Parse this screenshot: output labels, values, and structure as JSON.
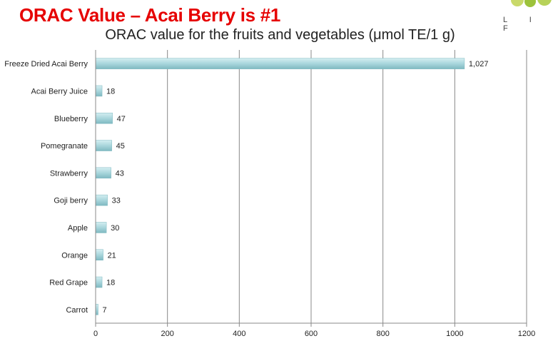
{
  "slide_title": "ORAC Value – Acai Berry is #1",
  "brand": {
    "letters": "L I F"
  },
  "chart_data": {
    "type": "bar",
    "orientation": "horizontal",
    "title": "ORAC value for the fruits and vegetables (μmol TE/1 g)",
    "categories": [
      "Freeze Dried Acai Berry",
      "Acai Berry Juice",
      "Blueberry",
      "Pomegranate",
      "Strawberry",
      "Goji berry",
      "Apple",
      "Orange",
      "Red Grape",
      "Carrot"
    ],
    "values": [
      1027,
      18,
      47,
      45,
      43,
      33,
      30,
      21,
      18,
      7
    ],
    "value_labels": [
      "1,027",
      "18",
      "47",
      "45",
      "43",
      "33",
      "30",
      "21",
      "18",
      "7"
    ],
    "xlim": [
      0,
      1200
    ],
    "xticks": [
      0,
      200,
      400,
      600,
      800,
      1000,
      1200
    ],
    "grid": true,
    "legend": "none",
    "bar_color": "#a9d6dc",
    "bar_edge_color": "#7fb9c1"
  }
}
